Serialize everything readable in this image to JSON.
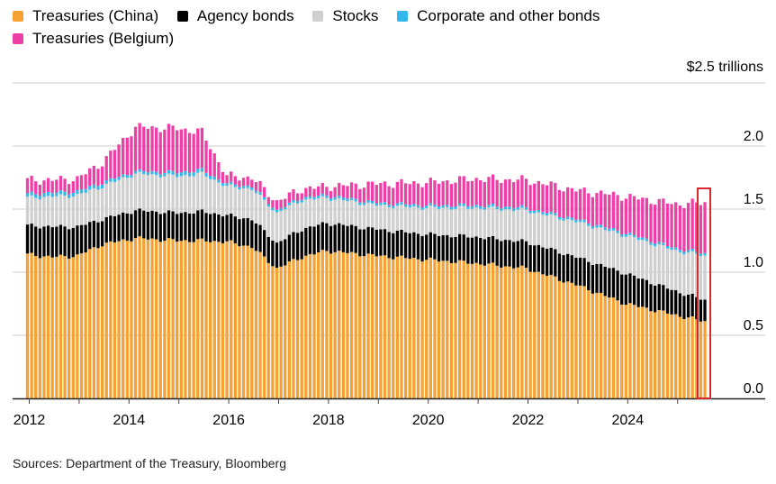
{
  "legend": [
    {
      "label": "Treasuries (China)",
      "color": "#f5a133"
    },
    {
      "label": "Agency bonds",
      "color": "#000000"
    },
    {
      "label": "Stocks",
      "color": "#cfcfcf"
    },
    {
      "label": "Corporate and other bonds",
      "color": "#33b8ee"
    },
    {
      "label": "Treasuries (Belgium)",
      "color": "#ee3fa6"
    }
  ],
  "unit_label": "$2.5 trillions",
  "source": "Sources: Department of the Treasury, Bloomberg",
  "highlight_color": "#d6292b",
  "chart_data": {
    "type": "bar",
    "stacked": true,
    "title": "",
    "xlabel": "",
    "ylabel": "$ trillions",
    "ylim": [
      0,
      2.5
    ],
    "yticks": [
      "0.0",
      "0.5",
      "1.0",
      "1.5",
      "2.0",
      "$2.5 trillions"
    ],
    "ytick_values": [
      0,
      0.5,
      1.0,
      1.5,
      2.0,
      2.5
    ],
    "xticks": [
      "2012",
      "2014",
      "2016",
      "2018",
      "2020",
      "2022",
      "2024"
    ],
    "x_start": "2012-01",
    "x_end": "2025-08",
    "frequency": "monthly",
    "grid": true,
    "legend_position": "top",
    "highlighted_period": "2025-08",
    "anchor_months": [
      0,
      6,
      12,
      18,
      26,
      36,
      42,
      48,
      54,
      60,
      66,
      72,
      84,
      96,
      108,
      120,
      132,
      144,
      156,
      163
    ],
    "series": [
      {
        "name": "Treasuries (China)",
        "values": [
          1.14,
          1.12,
          1.13,
          1.22,
          1.27,
          1.25,
          1.25,
          1.24,
          1.2,
          1.03,
          1.12,
          1.17,
          1.13,
          1.1,
          1.07,
          1.03,
          0.9,
          0.75,
          0.66,
          0.61
        ]
      },
      {
        "name": "Agency bonds",
        "values": [
          0.23,
          0.24,
          0.23,
          0.2,
          0.22,
          0.22,
          0.23,
          0.21,
          0.22,
          0.2,
          0.22,
          0.22,
          0.21,
          0.2,
          0.21,
          0.21,
          0.22,
          0.24,
          0.19,
          0.17
        ]
      },
      {
        "name": "Stocks",
        "values": [
          0.22,
          0.24,
          0.25,
          0.26,
          0.29,
          0.29,
          0.3,
          0.23,
          0.24,
          0.24,
          0.23,
          0.2,
          0.19,
          0.21,
          0.23,
          0.25,
          0.28,
          0.3,
          0.32,
          0.35
        ]
      },
      {
        "name": "Corporate and other bonds",
        "values": [
          0.03,
          0.03,
          0.03,
          0.03,
          0.02,
          0.03,
          0.03,
          0.02,
          0.02,
          0.02,
          0.02,
          0.02,
          0.02,
          0.02,
          0.02,
          0.02,
          0.02,
          0.02,
          0.02,
          0.02
        ]
      },
      {
        "name": "Treasuries (Belgium)",
        "values": [
          0.11,
          0.1,
          0.1,
          0.16,
          0.35,
          0.35,
          0.3,
          0.06,
          0.07,
          0.07,
          0.07,
          0.07,
          0.15,
          0.18,
          0.21,
          0.22,
          0.23,
          0.29,
          0.35,
          0.4
        ]
      }
    ]
  }
}
